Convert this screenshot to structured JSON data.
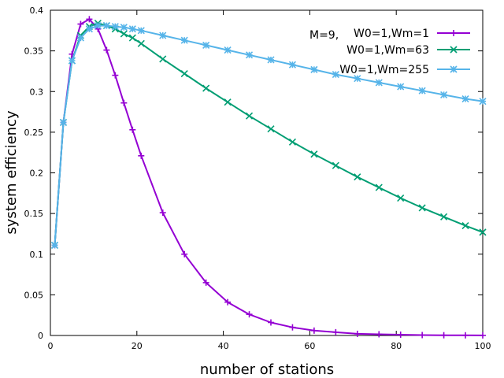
{
  "chart_data": {
    "type": "line",
    "xlabel": "number of stations",
    "ylabel": "system efficiency",
    "xlim": [
      0,
      100
    ],
    "ylim": [
      0,
      0.4
    ],
    "xticks": [
      "0",
      "20",
      "40",
      "60",
      "80",
      "100"
    ],
    "yticks": [
      "0",
      "0.05",
      "0.1",
      "0.15",
      "0.2",
      "0.25",
      "0.3",
      "0.35",
      "0.4"
    ],
    "legend_position": "top-right",
    "annotation": "M=9,",
    "series": [
      {
        "name": "W0=1,Wm=1",
        "color": "#9400d3",
        "marker": "plus",
        "x": [
          1,
          3,
          5,
          7,
          9,
          11,
          13,
          15,
          17,
          19,
          21,
          26,
          31,
          36,
          41,
          46,
          51,
          56,
          61,
          66,
          71,
          76,
          81,
          86,
          91,
          96,
          100
        ],
        "y": [
          0.111,
          0.262,
          0.346,
          0.383,
          0.389,
          0.377,
          0.351,
          0.32,
          0.286,
          0.253,
          0.221,
          0.151,
          0.1,
          0.065,
          0.041,
          0.026,
          0.016,
          0.01,
          0.006,
          0.004,
          0.002,
          0.0015,
          0.001,
          0.0005,
          0.0003,
          0.0002,
          0.0001
        ]
      },
      {
        "name": "W0=1,Wm=63",
        "color": "#009e73",
        "marker": "x",
        "x": [
          1,
          3,
          5,
          7,
          9,
          11,
          13,
          15,
          17,
          19,
          21,
          26,
          31,
          36,
          41,
          46,
          51,
          56,
          61,
          66,
          71,
          76,
          81,
          86,
          91,
          96,
          100
        ],
        "y": [
          0.111,
          0.262,
          0.338,
          0.369,
          0.38,
          0.384,
          0.381,
          0.377,
          0.371,
          0.366,
          0.359,
          0.34,
          0.322,
          0.304,
          0.287,
          0.27,
          0.254,
          0.238,
          0.223,
          0.209,
          0.195,
          0.182,
          0.169,
          0.157,
          0.146,
          0.135,
          0.127
        ]
      },
      {
        "name": "W0=1,Wm=255",
        "color": "#56b4e9",
        "marker": "star",
        "x": [
          1,
          3,
          5,
          7,
          9,
          11,
          13,
          15,
          17,
          19,
          21,
          26,
          31,
          36,
          41,
          46,
          51,
          56,
          61,
          66,
          71,
          76,
          81,
          86,
          91,
          96,
          100
        ],
        "y": [
          0.111,
          0.262,
          0.338,
          0.366,
          0.377,
          0.381,
          0.381,
          0.38,
          0.379,
          0.377,
          0.375,
          0.369,
          0.363,
          0.357,
          0.351,
          0.345,
          0.339,
          0.333,
          0.327,
          0.321,
          0.316,
          0.311,
          0.306,
          0.301,
          0.296,
          0.291,
          0.288
        ]
      }
    ]
  }
}
